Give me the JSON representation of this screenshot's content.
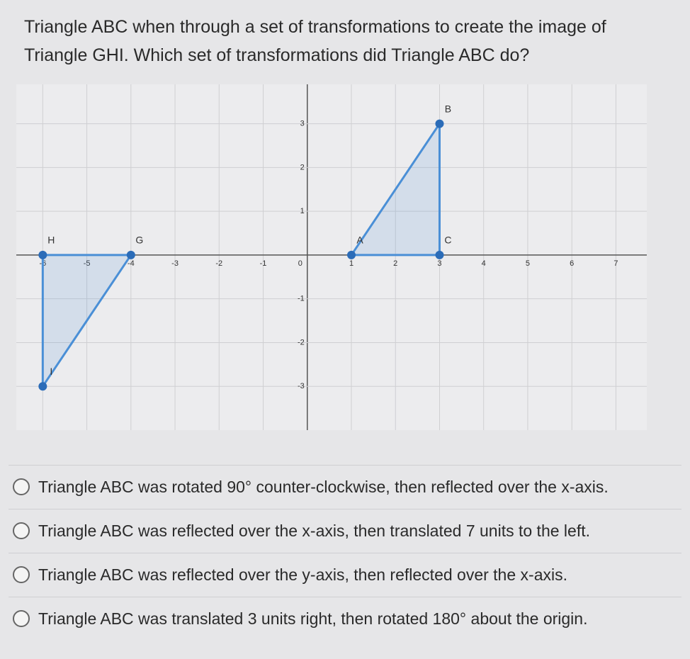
{
  "question": {
    "text": "Triangle ABC when through a set of transformations to create the image of Triangle GHI. Which set of transformations did Triangle ABC do?"
  },
  "graph": {
    "xlim": [
      -6.6,
      7.7
    ],
    "ylim": [
      -4,
      3.9
    ],
    "xticks": [
      -6,
      -5,
      -4,
      -3,
      -2,
      -1,
      0,
      1,
      2,
      3,
      4,
      5,
      6,
      7
    ],
    "yticks": [
      -3,
      -2,
      -1,
      1,
      2,
      3
    ],
    "color": "#4a8fd6",
    "triangles": [
      {
        "points": [
          {
            "label": "A",
            "x": 1,
            "y": 0
          },
          {
            "label": "B",
            "x": 3,
            "y": 3
          },
          {
            "label": "C",
            "x": 3,
            "y": 0
          }
        ]
      },
      {
        "points": [
          {
            "label": "G",
            "x": -4,
            "y": 0
          },
          {
            "label": "H",
            "x": -6,
            "y": 0
          },
          {
            "label": "I",
            "x": -6,
            "y": -3
          }
        ]
      }
    ]
  },
  "options": [
    "Triangle ABC was rotated 90° counter-clockwise, then reflected over the x-axis.",
    "Triangle ABC was reflected over the x-axis, then translated 7 units to the left.",
    "Triangle ABC was reflected over the y-axis, then reflected over the x-axis.",
    "Triangle ABC was translated 3 units right, then rotated 180° about the origin."
  ]
}
